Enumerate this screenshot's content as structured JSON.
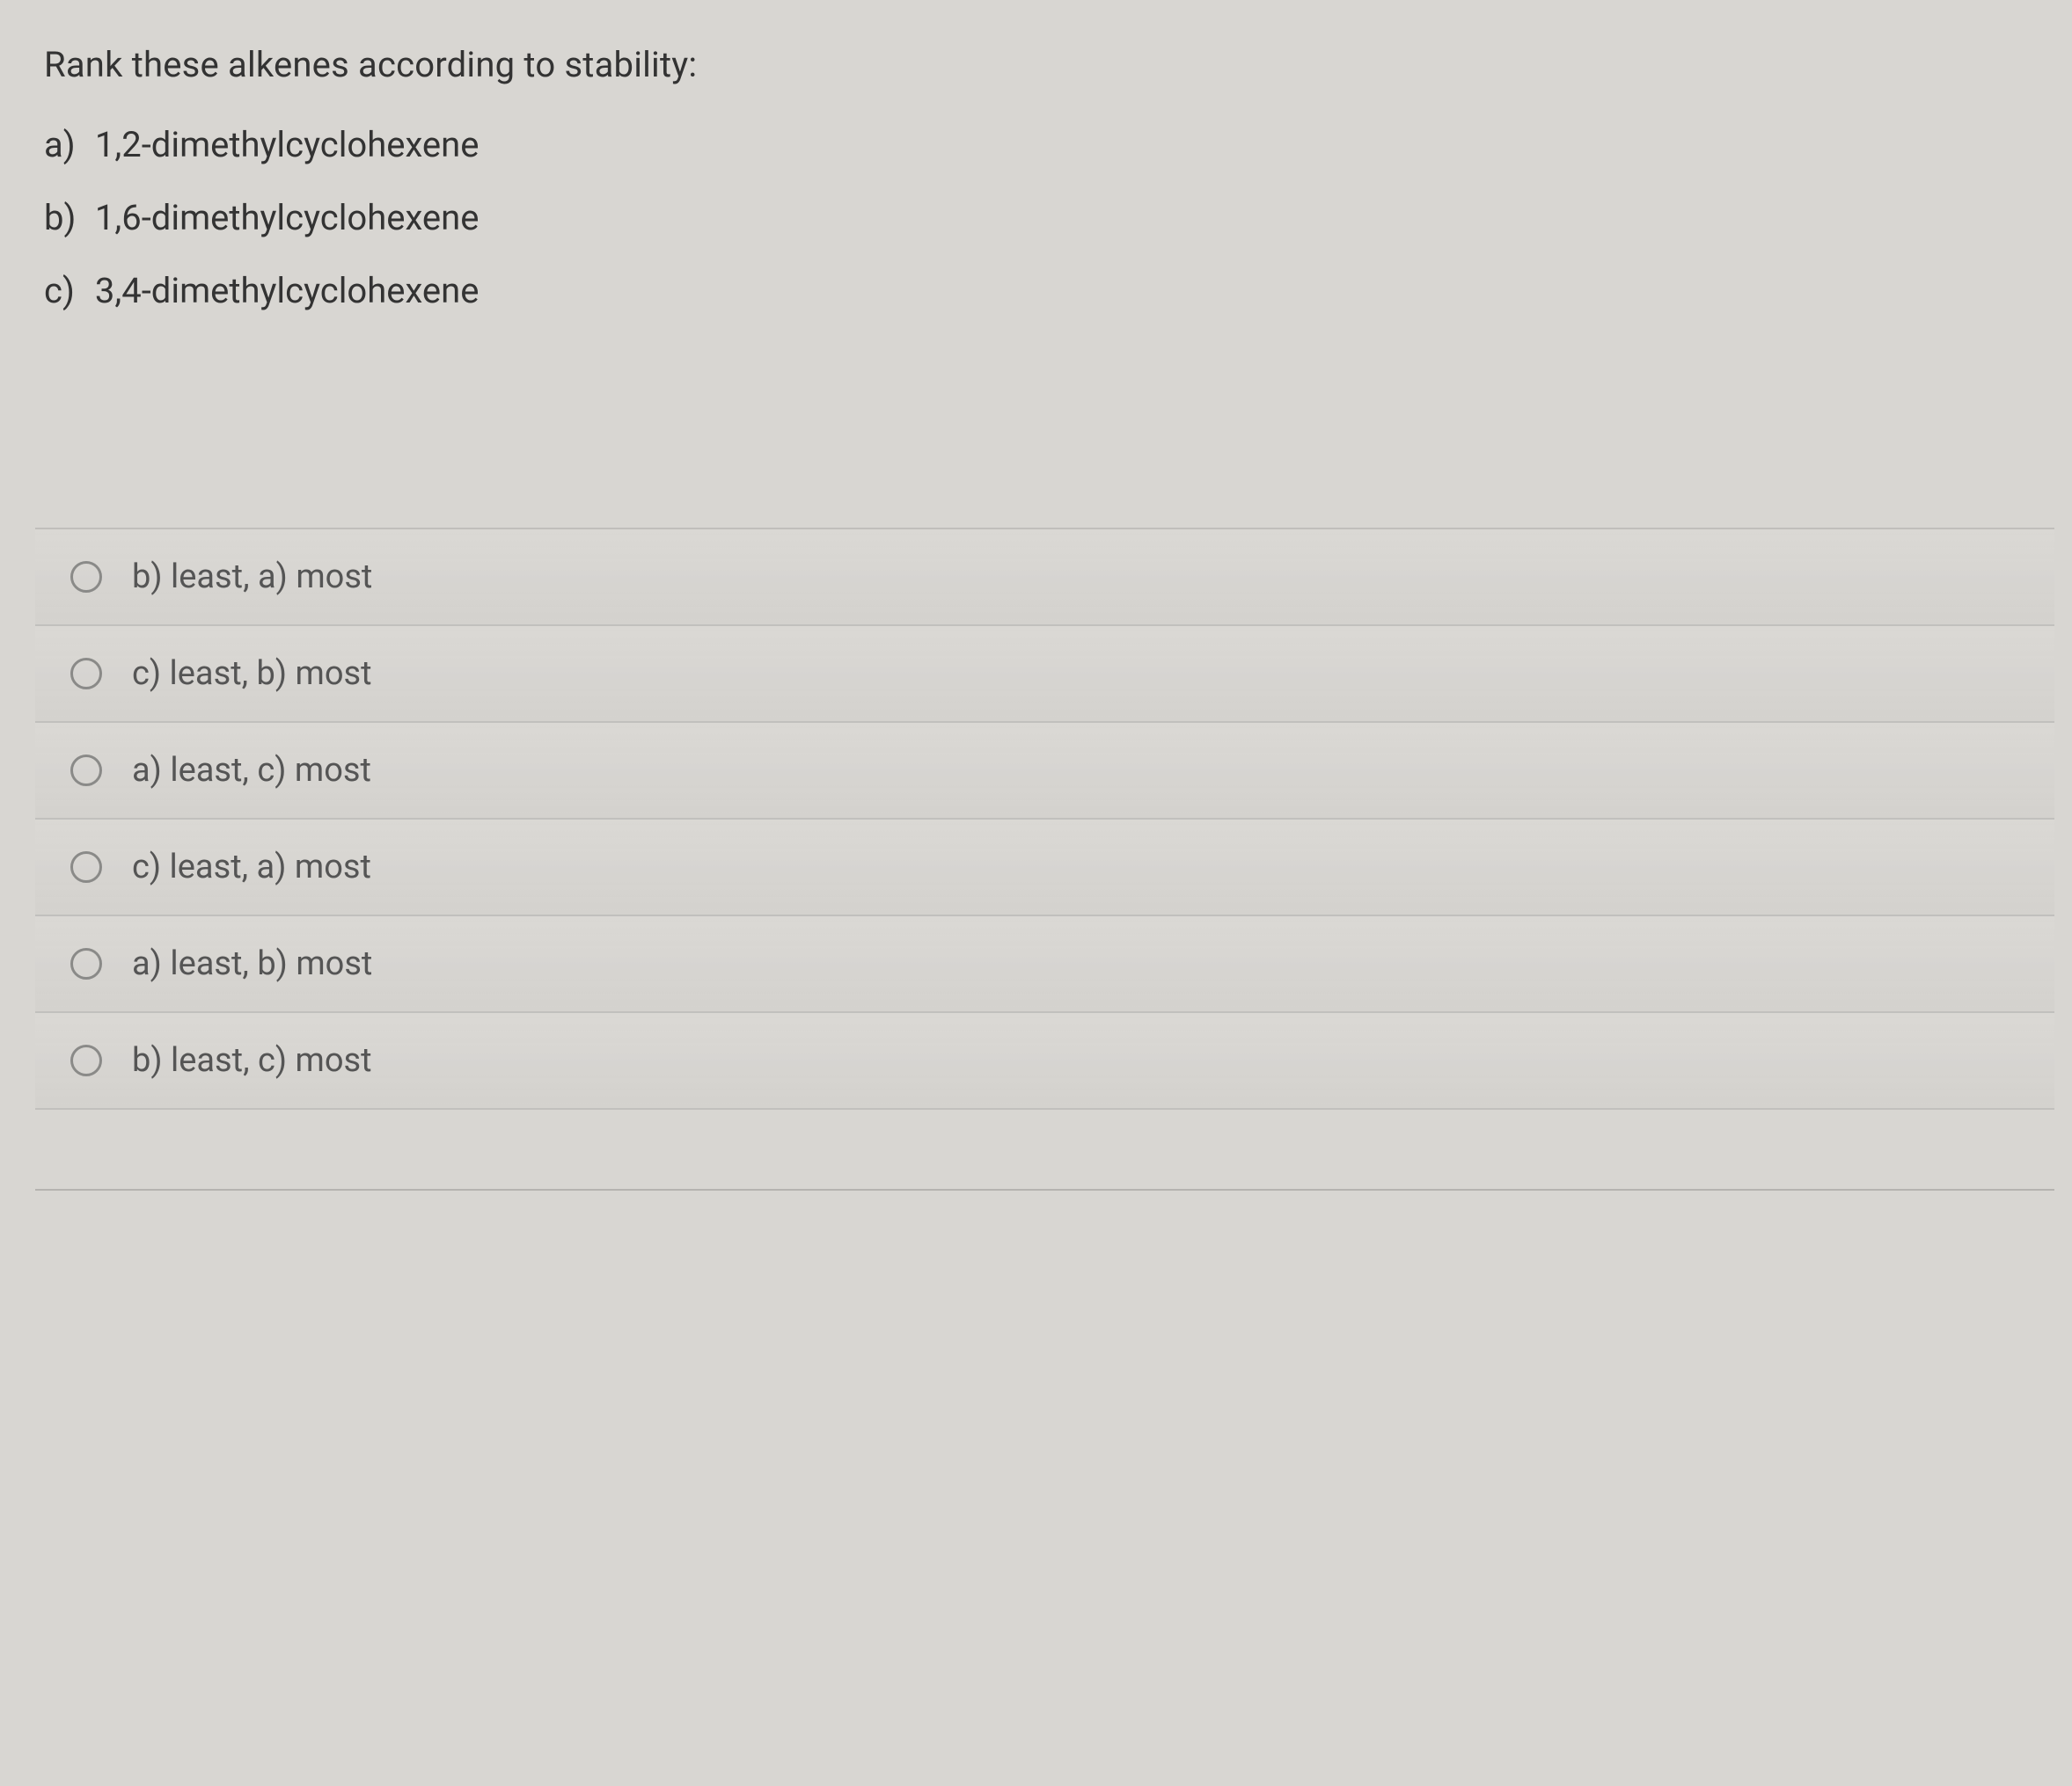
{
  "question": {
    "prompt": "Rank these alkenes according to stability:",
    "items": [
      {
        "marker": "a)",
        "text": "1,2-dimethylcyclohexene"
      },
      {
        "marker": "b)",
        "text": "1,6-dimethylcyclohexene"
      },
      {
        "marker": "c)",
        "text": "3,4-dimethylcyclohexene"
      }
    ]
  },
  "answers": [
    {
      "label": "b) least, a) most"
    },
    {
      "label": "c) least, b) most"
    },
    {
      "label": "a) least, c) most"
    },
    {
      "label": "c) least, a) most"
    },
    {
      "label": "a) least, b) most"
    },
    {
      "label": "b) least, c) most"
    }
  ],
  "colors": {
    "background": "#d8d6d2",
    "text": "#3a3a3a",
    "subtext": "#555555",
    "divider": "rgba(120,120,120,0.25)",
    "radio_border": "#8a8a88"
  }
}
